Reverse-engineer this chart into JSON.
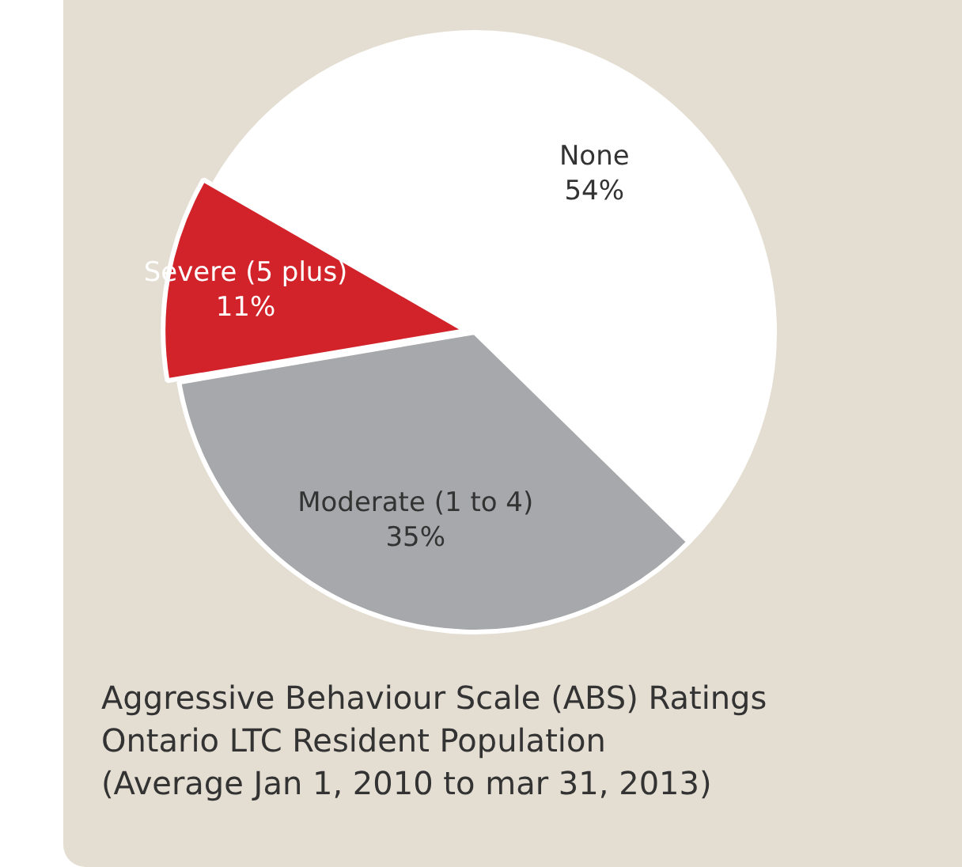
{
  "chart_data": {
    "type": "pie",
    "categories": [
      "None",
      "Moderate (1 to 4)",
      "Severe (5 plus)"
    ],
    "values": [
      54,
      35,
      11
    ],
    "colors": [
      "#ffffff",
      "#a7a8ab",
      "#d2232a"
    ],
    "value_labels": [
      "54%",
      "35%",
      "11%"
    ],
    "legend": false,
    "annotations": [
      "Aggressive Behaviour Scale (ABS) Ratings",
      "Ontario LTC Resident Population",
      "(Average  Jan 1, 2010 to mar 31, 2013)"
    ]
  }
}
